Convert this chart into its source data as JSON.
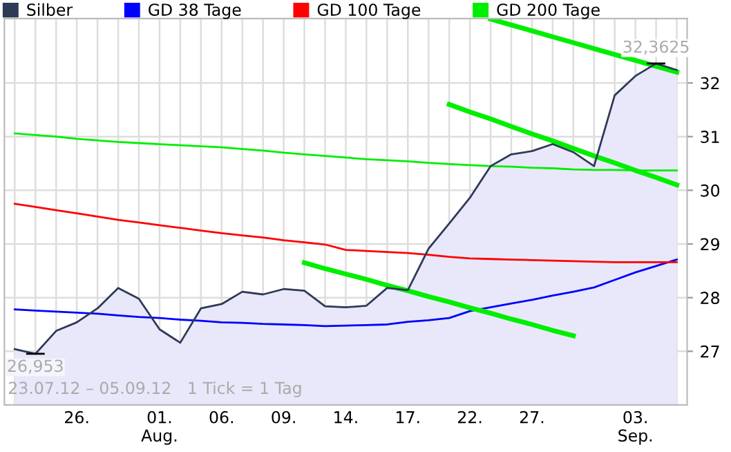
{
  "chart_data": {
    "type": "line",
    "categories": [
      null,
      null,
      null,
      "26.",
      null,
      null,
      null,
      "01.\nAug.",
      null,
      null,
      "06.",
      null,
      null,
      "09.",
      null,
      null,
      "14.",
      null,
      null,
      "17.",
      null,
      null,
      "22.",
      null,
      null,
      "27.",
      null,
      null,
      null,
      null,
      "03.\nSep.",
      null,
      null
    ],
    "ylim": [
      26,
      33.2
    ],
    "yticks": [
      27,
      28,
      29,
      30,
      31,
      32
    ],
    "grid": true,
    "legend": "top left",
    "series": [
      {
        "name": "Silber",
        "type": "area",
        "color": "#2e3a58",
        "values": [
          27.04,
          26.953,
          27.38,
          27.54,
          27.8,
          28.18,
          27.98,
          27.41,
          27.16,
          27.8,
          27.88,
          28.11,
          28.06,
          28.16,
          28.13,
          27.84,
          27.82,
          27.85,
          28.18,
          28.14,
          28.91,
          29.38,
          29.86,
          30.45,
          30.67,
          30.73,
          30.86,
          30.71,
          30.45,
          31.77,
          32.13,
          32.3625,
          32.24
        ]
      },
      {
        "name": "GD 38 Tage",
        "color": "#0000ff",
        "values": [
          27.78,
          27.76,
          27.74,
          27.72,
          27.7,
          27.67,
          27.64,
          27.62,
          27.59,
          27.57,
          27.54,
          27.53,
          27.51,
          27.5,
          27.49,
          27.47,
          27.48,
          27.49,
          27.5,
          27.55,
          27.58,
          27.62,
          27.75,
          27.82,
          27.89,
          27.96,
          28.04,
          28.11,
          28.19,
          28.33,
          28.47,
          28.59,
          28.71
        ]
      },
      {
        "name": "GD 100 Tage",
        "color": "#ff0000",
        "values": [
          29.75,
          29.69,
          29.63,
          29.57,
          29.51,
          29.45,
          29.4,
          29.35,
          29.3,
          29.25,
          29.2,
          29.16,
          29.12,
          29.07,
          29.03,
          28.99,
          28.89,
          28.87,
          28.85,
          28.83,
          28.8,
          28.76,
          28.73,
          28.72,
          28.71,
          28.7,
          28.69,
          28.68,
          28.67,
          28.66,
          28.66,
          28.66,
          28.66
        ]
      },
      {
        "name": "GD 200 Tage",
        "color": "#00ee00",
        "values": [
          31.06,
          31.03,
          31.0,
          30.96,
          30.93,
          30.9,
          30.88,
          30.86,
          30.84,
          30.82,
          30.8,
          30.77,
          30.74,
          30.7,
          30.67,
          30.64,
          30.61,
          30.58,
          30.56,
          30.54,
          30.51,
          30.49,
          30.47,
          30.45,
          30.44,
          30.42,
          30.41,
          30.39,
          30.38,
          30.38,
          30.37,
          30.37,
          30.37
        ]
      },
      {
        "color": "#00ee00",
        "values": [
          null,
          null,
          null,
          null,
          null,
          null,
          null,
          null,
          null,
          null,
          null,
          null,
          null,
          null,
          null,
          null,
          null,
          null,
          null,
          null,
          null,
          null,
          null,
          33.19,
          33.08,
          32.97,
          32.86,
          32.75,
          32.64,
          32.53,
          32.42,
          32.31,
          32.2
        ]
      },
      {
        "color": "#00ee00",
        "values": [
          null,
          null,
          null,
          null,
          null,
          null,
          null,
          null,
          null,
          null,
          null,
          null,
          null,
          null,
          null,
          null,
          null,
          null,
          null,
          null,
          null,
          31.6,
          31.46,
          31.33,
          31.19,
          31.05,
          30.92,
          30.78,
          30.64,
          30.51,
          30.37,
          30.24,
          30.1
        ]
      },
      {
        "color": "#00ee00",
        "values": [
          null,
          null,
          null,
          null,
          null,
          null,
          null,
          null,
          null,
          null,
          null,
          null,
          null,
          null,
          28.65,
          28.54,
          28.44,
          28.34,
          28.23,
          28.13,
          28.02,
          27.92,
          27.81,
          27.71,
          27.6,
          27.5,
          27.39,
          27.29,
          null,
          null,
          null,
          null,
          null
        ]
      }
    ],
    "annotations": [
      {
        "text": "32,3625",
        "y": 32.3625
      },
      {
        "text": "26,953",
        "y": 26.953
      },
      "23.07.12 – 05.09.12   1 Tick = 1 Tag"
    ]
  }
}
